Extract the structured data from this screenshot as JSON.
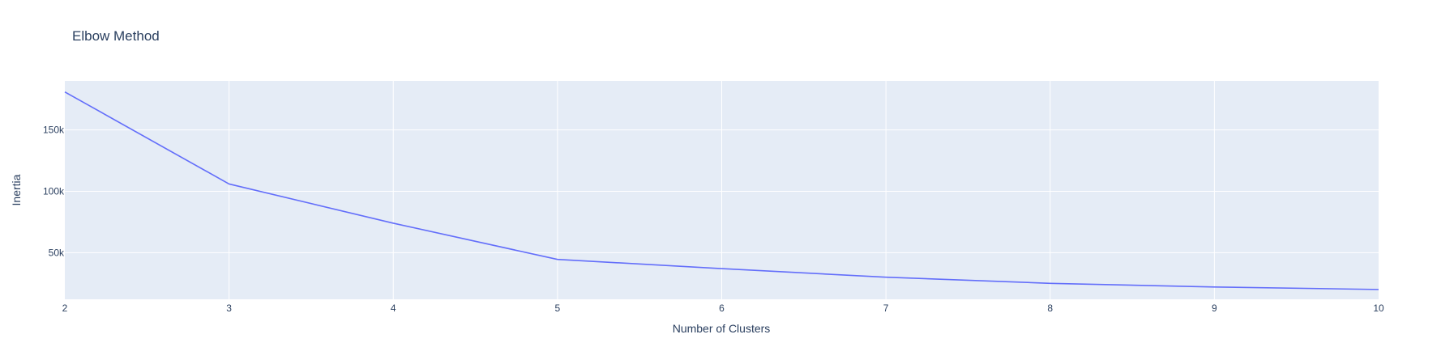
{
  "chart_data": {
    "type": "line",
    "title": "Elbow Method",
    "xlabel": "Number of Clusters",
    "ylabel": "Inertia",
    "x": [
      2,
      3,
      4,
      5,
      6,
      7,
      8,
      9,
      10
    ],
    "series": [
      {
        "values": [
          181000,
          106000,
          74000,
          44500,
          37000,
          30000,
          25000,
          22000,
          20000
        ],
        "color": "#636efa"
      }
    ],
    "xlim": [
      2,
      10
    ],
    "ylim": [
      12000,
      190000
    ],
    "xticks": [
      2,
      3,
      4,
      5,
      6,
      7,
      8,
      9,
      10
    ],
    "yticks": [
      50000,
      100000,
      150000
    ],
    "ytick_labels": [
      "50k",
      "100k",
      "150k"
    ],
    "grid": true,
    "plot_bgcolor": "#e5ecf6",
    "grid_color": "#ffffff"
  }
}
